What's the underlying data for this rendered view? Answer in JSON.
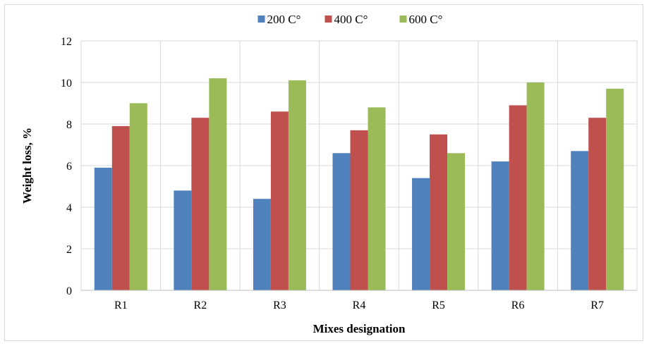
{
  "chart_data": {
    "type": "bar",
    "categories": [
      "R1",
      "R2",
      "R3",
      "R4",
      "R5",
      "R6",
      "R7"
    ],
    "series": [
      {
        "name": "200 C°",
        "color": "#4f81bd",
        "values": [
          5.9,
          4.8,
          4.4,
          6.6,
          5.4,
          6.2,
          6.7
        ]
      },
      {
        "name": "400  C°",
        "color": "#c0504d",
        "values": [
          7.9,
          8.3,
          8.6,
          7.7,
          7.5,
          8.9,
          8.3
        ]
      },
      {
        "name": "600  C°",
        "color": "#9bbb59",
        "values": [
          9.0,
          10.2,
          10.1,
          8.8,
          6.6,
          10.0,
          9.7
        ]
      }
    ],
    "xlabel": "Mixes designation",
    "ylabel": "Weight loss, %",
    "ylim": [
      0,
      12
    ],
    "yticks": [
      0,
      2,
      4,
      6,
      8,
      10,
      12
    ],
    "grid": {
      "horizontal": true,
      "vertical": true
    },
    "legend_position": "top-center"
  }
}
